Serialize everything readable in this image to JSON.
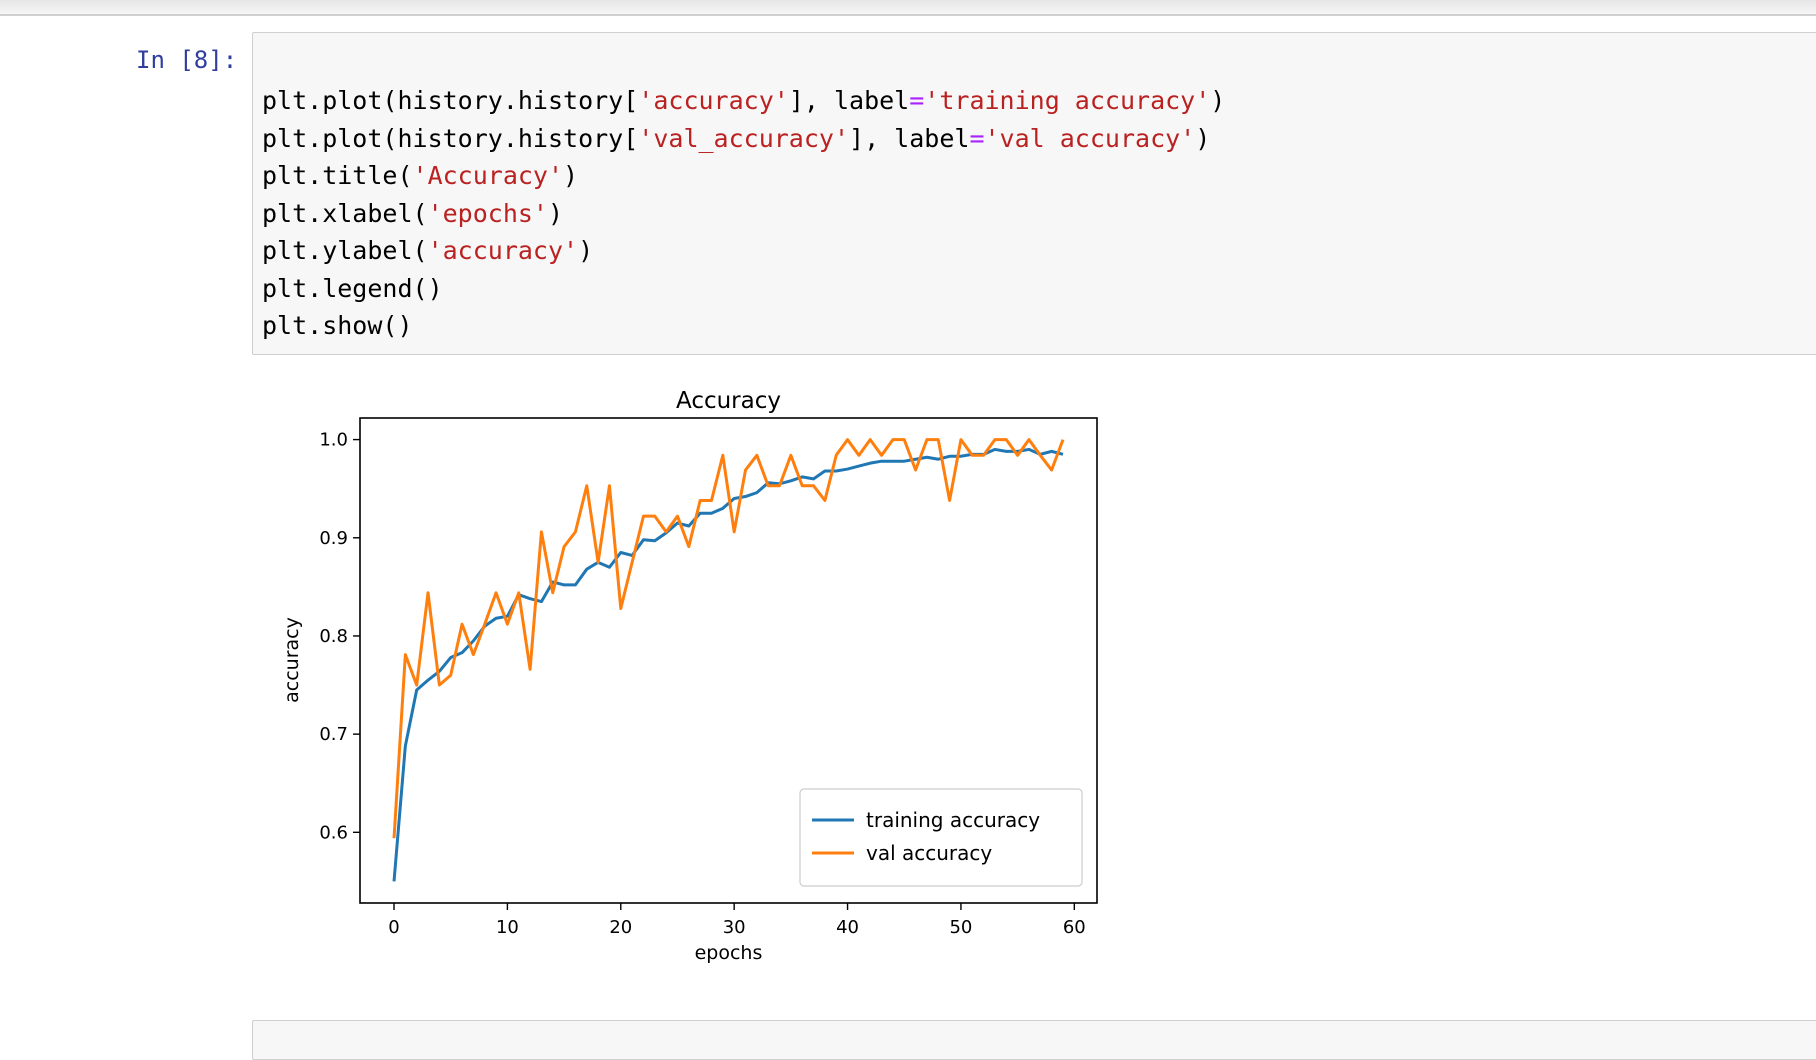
{
  "cell": {
    "prompt": "In [8]:",
    "code_lines": [
      [
        {
          "t": "plt.plot(history.history["
        },
        {
          "t": "'accuracy'",
          "c": "str"
        },
        {
          "t": "], label"
        },
        {
          "t": "=",
          "c": "op"
        },
        {
          "t": "'training accuracy'",
          "c": "str"
        },
        {
          "t": ")"
        }
      ],
      [
        {
          "t": "plt.plot(history.history["
        },
        {
          "t": "'val_accuracy'",
          "c": "str"
        },
        {
          "t": "], label"
        },
        {
          "t": "=",
          "c": "op"
        },
        {
          "t": "'val accuracy'",
          "c": "str"
        },
        {
          "t": ")"
        }
      ],
      [
        {
          "t": "plt.title("
        },
        {
          "t": "'Accuracy'",
          "c": "str"
        },
        {
          "t": ")"
        }
      ],
      [
        {
          "t": "plt.xlabel("
        },
        {
          "t": "'epochs'",
          "c": "str"
        },
        {
          "t": ")"
        }
      ],
      [
        {
          "t": "plt.ylabel("
        },
        {
          "t": "'accuracy'",
          "c": "str"
        },
        {
          "t": ")"
        }
      ],
      [
        {
          "t": "plt.legend()"
        }
      ],
      [
        {
          "t": "plt.show()"
        }
      ]
    ]
  },
  "chart_data": {
    "type": "line",
    "title": "Accuracy",
    "xlabel": "epochs",
    "ylabel": "accuracy",
    "xlim": [
      -3,
      62
    ],
    "ylim": [
      0.528,
      1.022
    ],
    "xticks": [
      0,
      10,
      20,
      30,
      40,
      50,
      60
    ],
    "yticks": [
      0.6,
      0.7,
      0.8,
      0.9,
      1.0
    ],
    "ytick_labels": [
      "0.6",
      "0.7",
      "0.8",
      "0.9",
      "1.0"
    ],
    "legend_position": "lower-right",
    "x": [
      0,
      1,
      2,
      3,
      4,
      5,
      6,
      7,
      8,
      9,
      10,
      11,
      12,
      13,
      14,
      15,
      16,
      17,
      18,
      19,
      20,
      21,
      22,
      23,
      24,
      25,
      26,
      27,
      28,
      29,
      30,
      31,
      32,
      33,
      34,
      35,
      36,
      37,
      38,
      39,
      40,
      41,
      42,
      43,
      44,
      45,
      46,
      47,
      48,
      49,
      50,
      51,
      52,
      53,
      54,
      55,
      56,
      57,
      58,
      59
    ],
    "series": [
      {
        "name": "training accuracy",
        "color": "#1f77b4",
        "values": [
          0.55,
          0.688,
          0.745,
          0.755,
          0.764,
          0.778,
          0.783,
          0.795,
          0.81,
          0.818,
          0.82,
          0.842,
          0.838,
          0.835,
          0.855,
          0.852,
          0.852,
          0.868,
          0.875,
          0.87,
          0.885,
          0.882,
          0.898,
          0.897,
          0.905,
          0.915,
          0.912,
          0.925,
          0.925,
          0.93,
          0.94,
          0.942,
          0.946,
          0.956,
          0.955,
          0.958,
          0.962,
          0.96,
          0.968,
          0.968,
          0.97,
          0.973,
          0.976,
          0.978,
          0.978,
          0.978,
          0.98,
          0.982,
          0.98,
          0.983,
          0.983,
          0.985,
          0.985,
          0.99,
          0.988,
          0.988,
          0.99,
          0.985,
          0.988,
          0.985
        ]
      },
      {
        "name": "val accuracy",
        "color": "#ff7f0e",
        "values": [
          0.594,
          0.781,
          0.75,
          0.844,
          0.75,
          0.76,
          0.812,
          0.781,
          0.812,
          0.844,
          0.812,
          0.844,
          0.766,
          0.906,
          0.844,
          0.891,
          0.906,
          0.953,
          0.875,
          0.953,
          0.828,
          0.875,
          0.922,
          0.922,
          0.906,
          0.922,
          0.891,
          0.938,
          0.938,
          0.984,
          0.906,
          0.969,
          0.984,
          0.953,
          0.953,
          0.984,
          0.953,
          0.953,
          0.938,
          0.984,
          1.0,
          0.984,
          1.0,
          0.984,
          1.0,
          1.0,
          0.969,
          1.0,
          1.0,
          0.938,
          1.0,
          0.984,
          0.984,
          1.0,
          1.0,
          0.984,
          1.0,
          0.984,
          0.969,
          1.0
        ]
      }
    ]
  }
}
